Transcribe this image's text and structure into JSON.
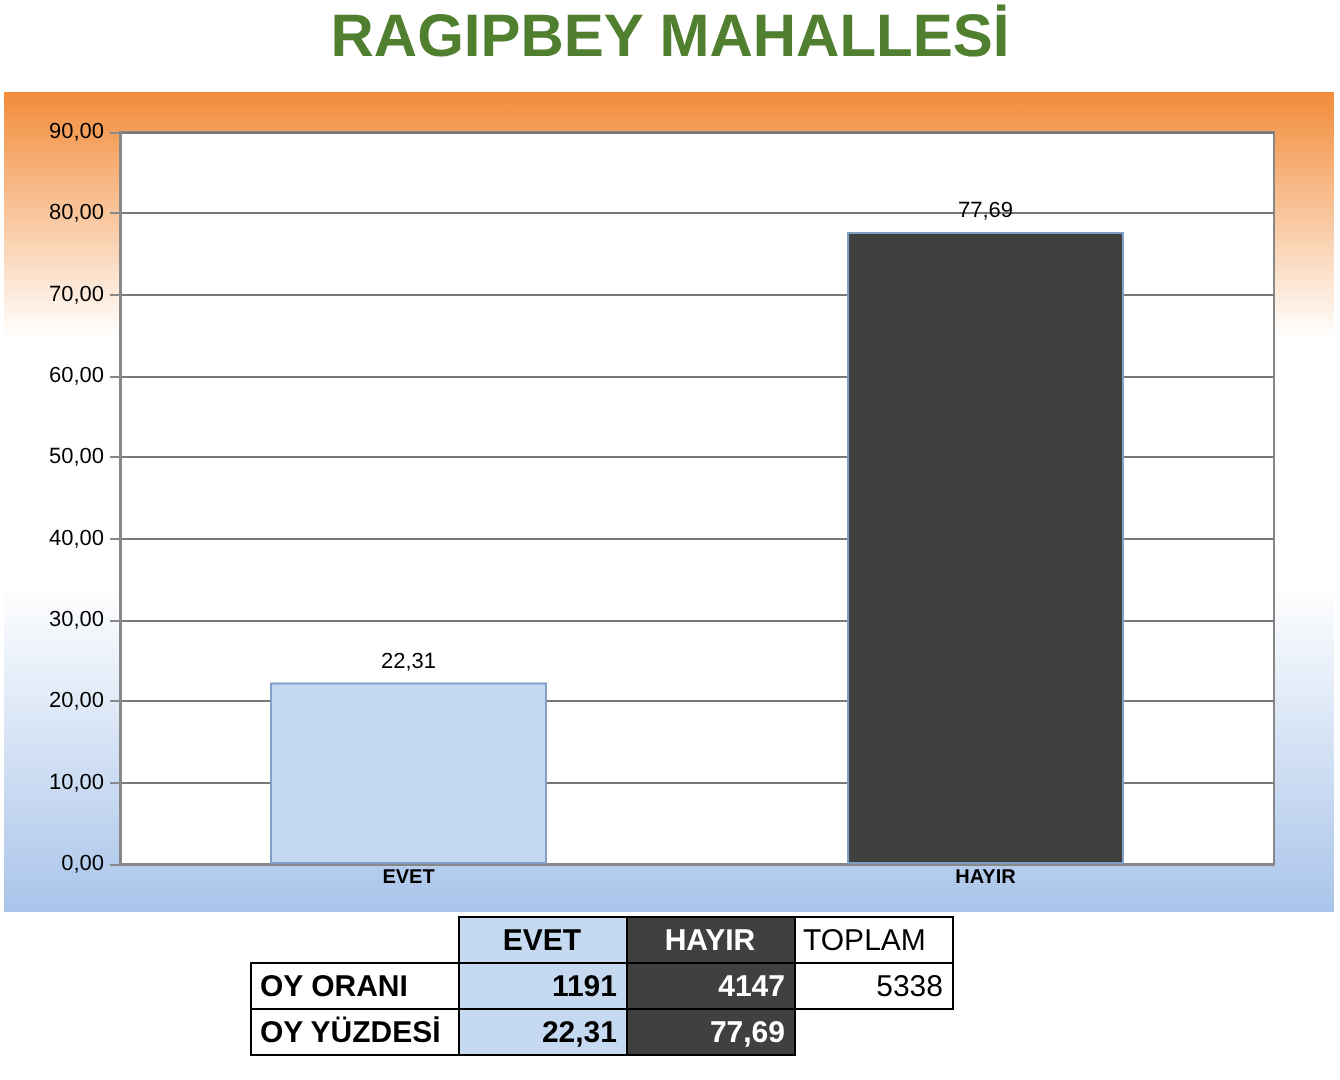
{
  "chart_data": {
    "type": "bar",
    "title": "RAGIPBEY MAHALLESİ",
    "categories": [
      "EVET",
      "HAYIR"
    ],
    "values": [
      22.31,
      77.69
    ],
    "value_labels": [
      "22,31",
      "77,69"
    ],
    "colors": [
      "#c5d9f1",
      "#404040"
    ],
    "ylim": [
      0,
      90
    ],
    "yticks": [
      {
        "value": 0,
        "label": "0,00"
      },
      {
        "value": 10,
        "label": "10,00"
      },
      {
        "value": 20,
        "label": "20,00"
      },
      {
        "value": 30,
        "label": "30,00"
      },
      {
        "value": 40,
        "label": "40,00"
      },
      {
        "value": 50,
        "label": "50,00"
      },
      {
        "value": 60,
        "label": "60,00"
      },
      {
        "value": 70,
        "label": "70,00"
      },
      {
        "value": 80,
        "label": "80,00"
      },
      {
        "value": 90,
        "label": "90,00"
      }
    ],
    "grid": "y",
    "annotations": [
      "TOPLAM",
      "OY ORANI",
      "1191",
      "4147",
      "5338",
      "OY YÜZDESİ"
    ]
  }
}
